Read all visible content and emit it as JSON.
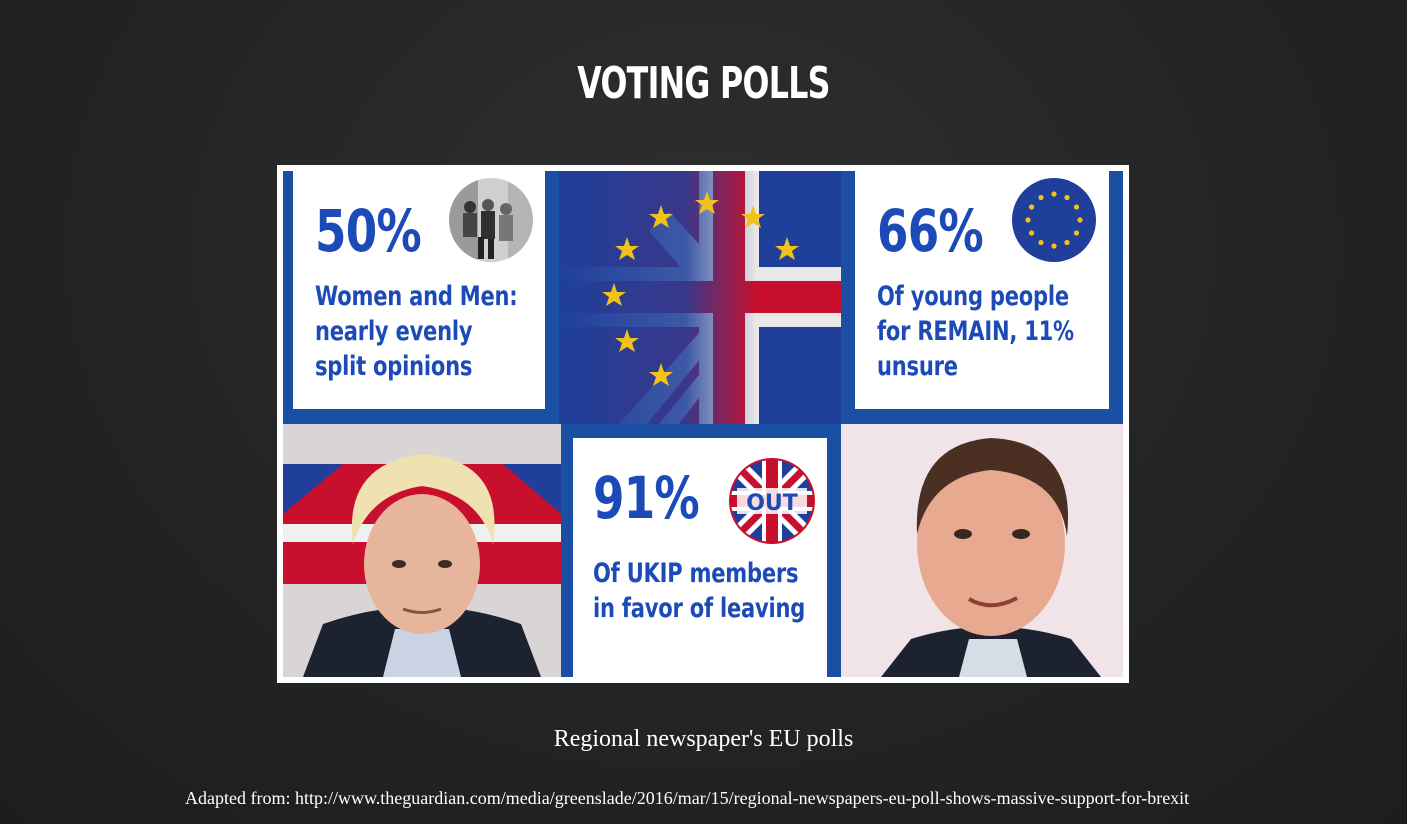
{
  "title": "VOTING POLLS",
  "panels": {
    "gender": {
      "value": "50%",
      "lines": [
        "Women and Men:",
        "nearly evenly",
        "split opinions"
      ]
    },
    "youth": {
      "value": "66%",
      "lines": [
        "Of young people",
        "for REMAIN, 11%",
        "unsure"
      ]
    },
    "ukip": {
      "value": "91%",
      "badge": "OUT",
      "lines": [
        "Of UKIP members",
        "in favor of leaving"
      ]
    }
  },
  "caption": "Regional newspaper's EU polls",
  "source": "Adapted from: http://www.theguardian.com/media/greenslade/2016/mar/15/regional-newspapers-eu-poll-shows-massive-support-for-brexit",
  "colors": {
    "background": "#232426",
    "stat_blue": "#1c4bb8",
    "frame_blue": "#1a4fa3",
    "eu_blue": "#1f3f9a",
    "eu_star": "#f2c21b",
    "uk_red": "#c8102e"
  }
}
